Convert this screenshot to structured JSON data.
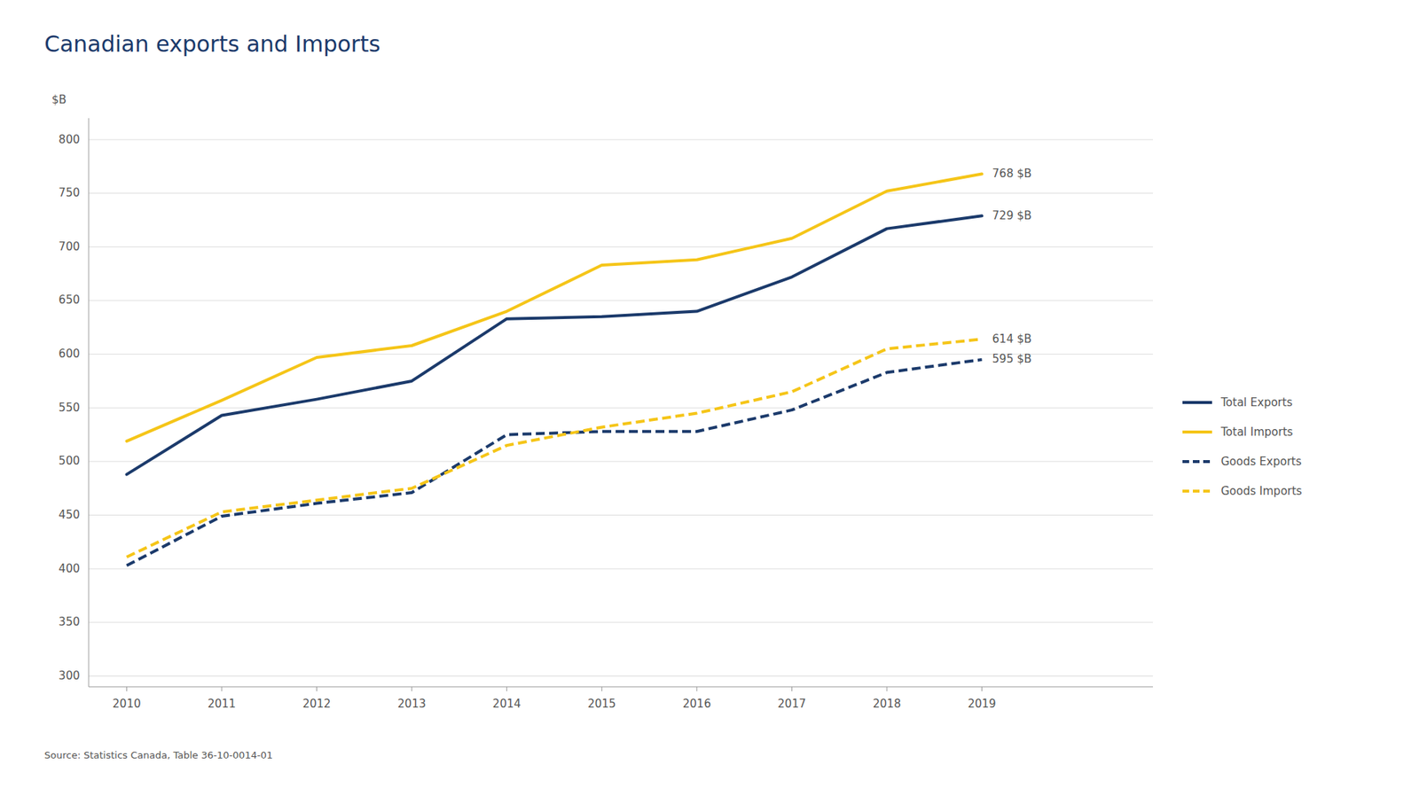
{
  "chart_data": {
    "type": "line",
    "title": "Canadian exports and Imports",
    "source": "Source: Statistics Canada, Table 36-10-0014-01",
    "ylabel": "$B",
    "x": [
      2010,
      2011,
      2012,
      2013,
      2014,
      2015,
      2016,
      2017,
      2018,
      2019
    ],
    "series": [
      {
        "name": "Total Exports",
        "color": "#1B3A6B",
        "line_style": "solid",
        "values": [
          488,
          543,
          558,
          575,
          633,
          635,
          640,
          672,
          717,
          729
        ],
        "value_labels": [
          null,
          null,
          null,
          null,
          null,
          null,
          null,
          null,
          null,
          "729 $B"
        ]
      },
      {
        "name": "Total Imports",
        "color": "#F5C518",
        "line_style": "solid",
        "values": [
          519,
          557,
          597,
          608,
          640,
          683,
          688,
          708,
          752,
          768
        ],
        "value_labels": [
          null,
          null,
          null,
          null,
          null,
          null,
          null,
          null,
          null,
          "768 $B"
        ]
      },
      {
        "name": "Goods Exports",
        "color": "#1B3A6B",
        "line_style": "dashed",
        "values": [
          403,
          449,
          461,
          471,
          525,
          528,
          528,
          548,
          583,
          595
        ],
        "value_labels": [
          null,
          null,
          null,
          null,
          null,
          null,
          null,
          null,
          null,
          "595 $B"
        ]
      },
      {
        "name": "Goods Imports",
        "color": "#F5C518",
        "line_style": "dashed",
        "values": [
          411,
          453,
          464,
          475,
          515,
          532,
          545,
          565,
          605,
          614
        ],
        "value_labels": [
          null,
          null,
          null,
          null,
          null,
          null,
          null,
          null,
          null,
          "614 $B"
        ]
      }
    ],
    "xlim": [
      2009.6,
      2020.8
    ],
    "xticks": [
      2010,
      2011,
      2012,
      2013,
      2014,
      2015,
      2016,
      2017,
      2018,
      2019
    ],
    "ylim": [
      290,
      820
    ],
    "yticks": [
      300,
      350,
      400,
      450,
      500,
      550,
      600,
      650,
      700,
      750,
      800
    ],
    "grid": true,
    "legend": "right"
  }
}
